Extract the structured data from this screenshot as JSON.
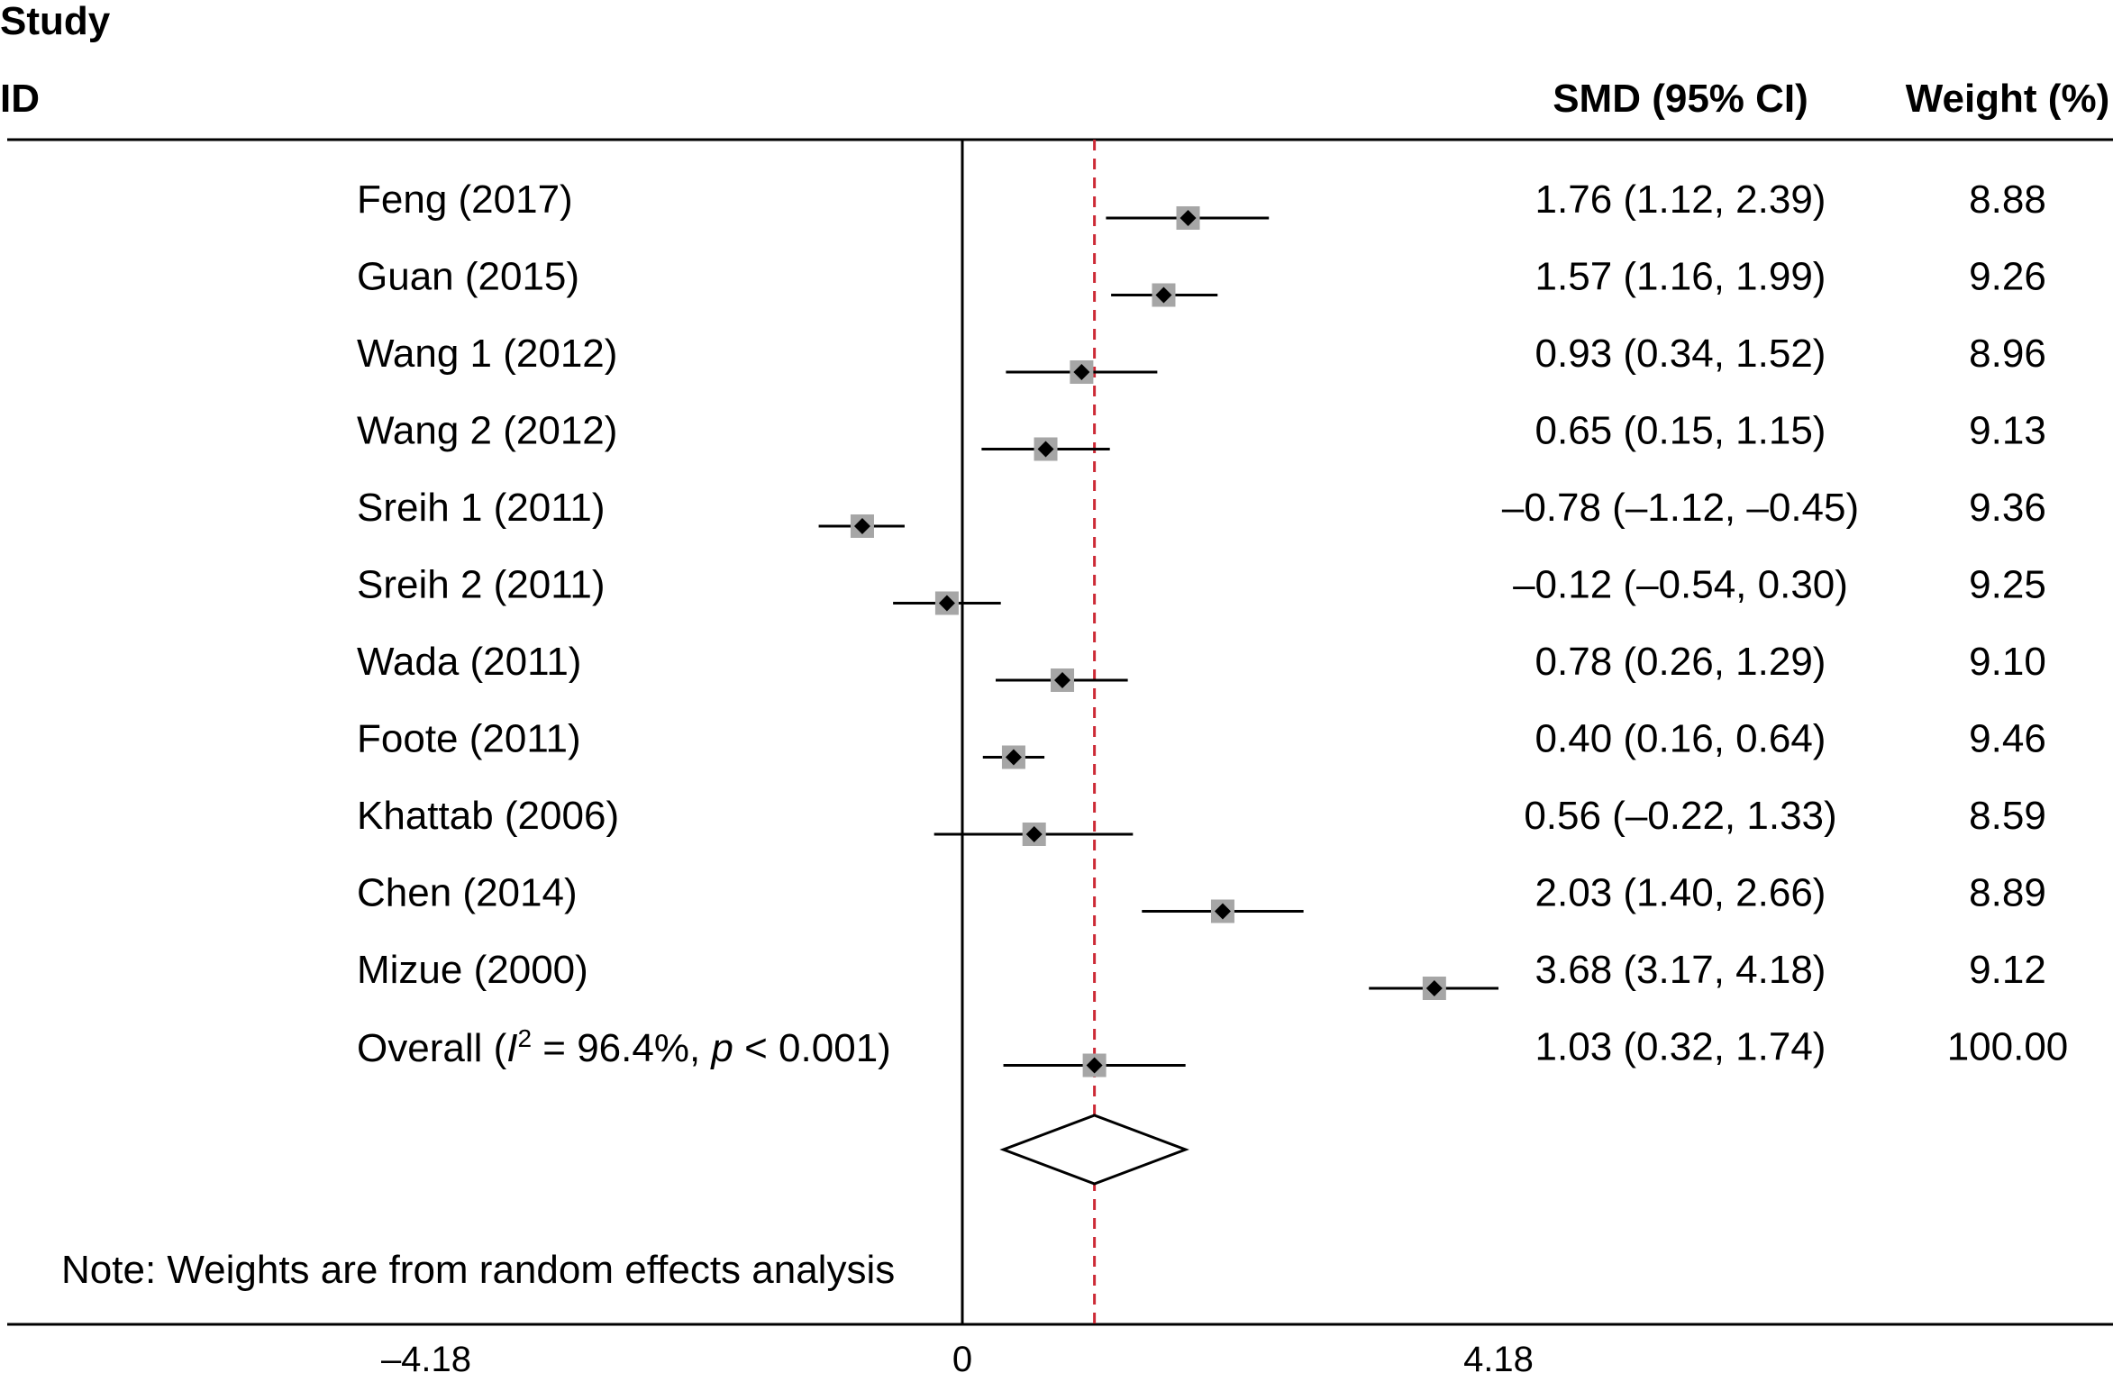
{
  "chart_data": {
    "type": "forest",
    "header": {
      "study_line1": "Study",
      "study_line2": "ID",
      "effect_col": "SMD (95% CI)",
      "weight_col": "Weight (%)"
    },
    "studies": [
      {
        "label": "Feng (2017)",
        "smd": 1.76,
        "ci": [
          1.12,
          2.39
        ],
        "ci_text": "1.76 (1.12, 2.39)",
        "weight": "8.88"
      },
      {
        "label": "Guan (2015)",
        "smd": 1.57,
        "ci": [
          1.16,
          1.99
        ],
        "ci_text": "1.57 (1.16, 1.99)",
        "weight": "9.26"
      },
      {
        "label": "Wang 1 (2012)",
        "smd": 0.93,
        "ci": [
          0.34,
          1.52
        ],
        "ci_text": "0.93 (0.34, 1.52)",
        "weight": "8.96"
      },
      {
        "label": "Wang 2 (2012)",
        "smd": 0.65,
        "ci": [
          0.15,
          1.15
        ],
        "ci_text": "0.65 (0.15, 1.15)",
        "weight": "9.13"
      },
      {
        "label": "Sreih 1 (2011)",
        "smd": -0.78,
        "ci": [
          -1.12,
          -0.45
        ],
        "ci_text": "–0.78 (–1.12, –0.45)",
        "weight": "9.36"
      },
      {
        "label": "Sreih 2 (2011)",
        "smd": -0.12,
        "ci": [
          -0.54,
          0.3
        ],
        "ci_text": "–0.12 (–0.54, 0.30)",
        "weight": "9.25"
      },
      {
        "label": "Wada (2011)",
        "smd": 0.78,
        "ci": [
          0.26,
          1.29
        ],
        "ci_text": "0.78 (0.26, 1.29)",
        "weight": "9.10"
      },
      {
        "label": "Foote (2011)",
        "smd": 0.4,
        "ci": [
          0.16,
          0.64
        ],
        "ci_text": "0.40 (0.16, 0.64)",
        "weight": "9.46"
      },
      {
        "label": "Khattab (2006)",
        "smd": 0.56,
        "ci": [
          -0.22,
          1.33
        ],
        "ci_text": "0.56 (–0.22, 1.33)",
        "weight": "8.59"
      },
      {
        "label": "Chen (2014)",
        "smd": 2.03,
        "ci": [
          1.4,
          2.66
        ],
        "ci_text": "2.03 (1.40, 2.66)",
        "weight": "8.89"
      },
      {
        "label": "Mizue (2000)",
        "smd": 3.68,
        "ci": [
          3.17,
          4.18
        ],
        "ci_text": "3.68 (3.17, 4.18)",
        "weight": "9.12"
      }
    ],
    "overall": {
      "label_prefix": "Overall (",
      "label_i": "I",
      "label_sup": "2",
      "label_mid": " = 96.4%, ",
      "label_p": "p",
      "label_suffix": " < 0.001)",
      "smd": 1.03,
      "ci": [
        0.32,
        1.74
      ],
      "ci_text": "1.03 (0.32, 1.74)",
      "weight": "100.00"
    },
    "note": "Note: Weights are from random effects analysis",
    "x_ticks": [
      {
        "value": -4.18,
        "label": "–4.18"
      },
      {
        "value": 0,
        "label": "0"
      },
      {
        "value": 4.18,
        "label": "4.18"
      }
    ],
    "xlim": [
      -4.18,
      4.18
    ],
    "null_line": 0,
    "overall_line": 1.03,
    "colors": {
      "marker_box": "#a6a6a6",
      "marker_point": "#000000",
      "ci_line": "#000000",
      "overall_dashed_line": "#cc2a36",
      "axis": "#000000"
    }
  }
}
